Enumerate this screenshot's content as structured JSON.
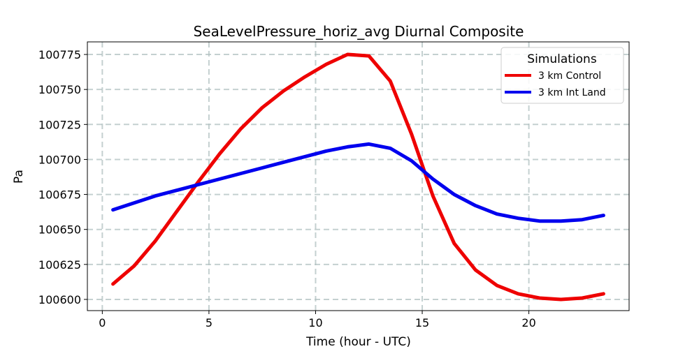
{
  "chart_data": {
    "type": "line",
    "title": "SeaLevelPressure_horiz_avg Diurnal Composite",
    "xlabel": "Time (hour - UTC)",
    "ylabel": "Pa",
    "xlim": [
      -0.7,
      24.7
    ],
    "ylim": [
      100592,
      100784
    ],
    "xticks": [
      0,
      5,
      10,
      15,
      20
    ],
    "yticks": [
      100600,
      100625,
      100650,
      100675,
      100700,
      100725,
      100750,
      100775
    ],
    "grid": true,
    "legend": {
      "title": "Simulations",
      "position": "top-right"
    },
    "x": [
      0.5,
      1.5,
      2.5,
      3.5,
      4.5,
      5.5,
      6.5,
      7.5,
      8.5,
      9.5,
      10.5,
      11.5,
      12.5,
      13.5,
      14.5,
      15.5,
      16.5,
      17.5,
      18.5,
      19.5,
      20.5,
      21.5,
      22.5,
      23.5
    ],
    "series": [
      {
        "name": "3 km Control",
        "color": "#ee0000",
        "values": [
          100611,
          100624,
          100642,
          100663,
          100684,
          100704,
          100722,
          100737,
          100749,
          100759,
          100768,
          100775,
          100774,
          100756,
          100718,
          100674,
          100640,
          100621,
          100610,
          100604,
          100601,
          100600,
          100601,
          100604
        ]
      },
      {
        "name": "3 km Int Land",
        "color": "#0000ee",
        "values": [
          100664,
          100669,
          100674,
          100678,
          100682,
          100686,
          100690,
          100694,
          100698,
          100702,
          100706,
          100709,
          100711,
          100708,
          100699,
          100686,
          100675,
          100667,
          100661,
          100658,
          100656,
          100656,
          100657,
          100660
        ]
      }
    ]
  }
}
